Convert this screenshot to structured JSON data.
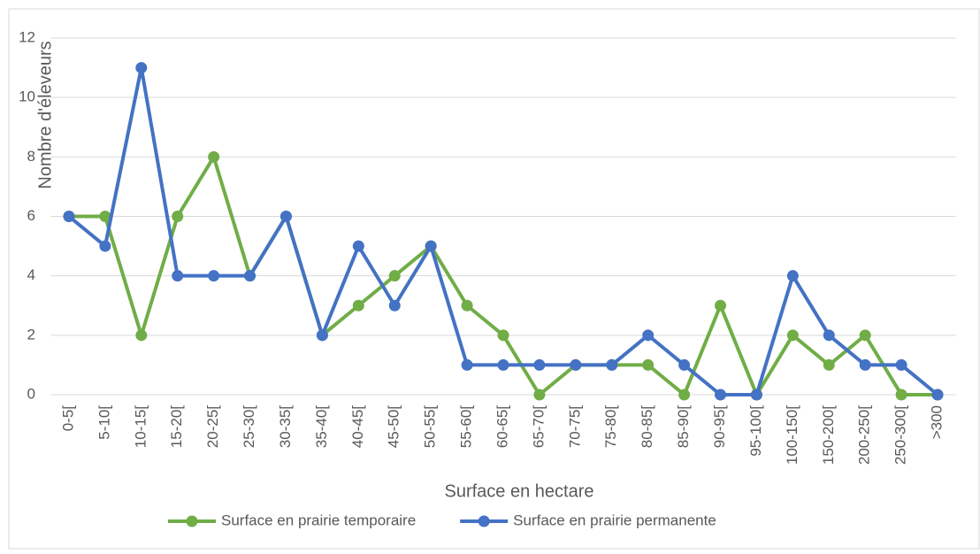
{
  "chart_data": {
    "type": "line",
    "x_label": "Surface en hectare",
    "y_label": "Nombre d'éleveurs",
    "categories": [
      "0-5[",
      "5-10[",
      "10-15[",
      "15-20[",
      "20-25[",
      "25-30[",
      "30-35[",
      "35-40[",
      "40-45[",
      "45-50[",
      "50-55[",
      "55-60[",
      "60-65[",
      "65-70[",
      "70-75[",
      "75-80[",
      "80-85[",
      "85-90[",
      "90-95[",
      "95-100[",
      "100-150[",
      "150-200[",
      "200-250[",
      "250-300[",
      ">300"
    ],
    "series": [
      {
        "name": "Surface en prairie temporaire",
        "color": "#70ad47",
        "values": [
          6,
          6,
          2,
          6,
          8,
          4,
          6,
          2,
          3,
          4,
          5,
          3,
          2,
          0,
          1,
          1,
          1,
          0,
          3,
          0,
          2,
          1,
          2,
          0,
          0
        ]
      },
      {
        "name": "Surface en prairie permanente",
        "color": "#4472c4",
        "values": [
          6,
          5,
          11,
          4,
          4,
          4,
          6,
          2,
          5,
          3,
          5,
          1,
          1,
          1,
          1,
          1,
          2,
          1,
          0,
          0,
          4,
          2,
          1,
          1,
          0
        ]
      }
    ],
    "ylim": [
      0,
      12
    ],
    "yticks": [
      0,
      2,
      4,
      6,
      8,
      10,
      12
    ],
    "grid": true,
    "legend": "bottom"
  }
}
